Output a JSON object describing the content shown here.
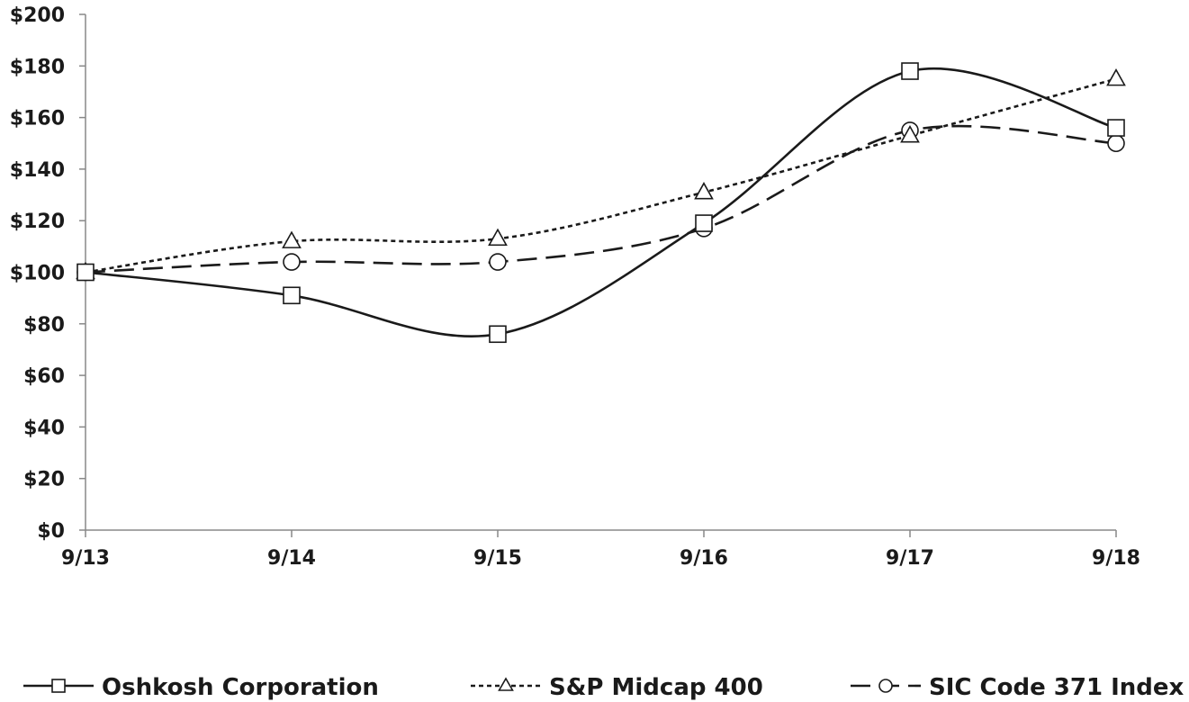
{
  "chart_data": {
    "type": "line",
    "title": "",
    "xlabel": "",
    "ylabel": "",
    "categories": [
      "9/13",
      "9/14",
      "9/15",
      "9/16",
      "9/17",
      "9/18"
    ],
    "ylim": [
      0,
      200
    ],
    "y_step": 20,
    "y_tick_labels": [
      "$0",
      "$20",
      "$40",
      "$60",
      "$80",
      "$100",
      "$120",
      "$140",
      "$160",
      "$180",
      "$200"
    ],
    "grid": false,
    "legend_position": "bottom",
    "series": [
      {
        "name": "Oshkosh Corporation",
        "values": [
          100,
          91,
          76,
          119,
          178,
          156
        ],
        "marker": "square",
        "dash": "solid",
        "color": "#1a1a1a"
      },
      {
        "name": "S&P Midcap 400",
        "values": [
          100,
          112,
          113,
          131,
          153,
          175
        ],
        "marker": "triangle",
        "dash": "short-dash",
        "color": "#1a1a1a"
      },
      {
        "name": "SIC Code 371 Index",
        "values": [
          100,
          104,
          104,
          117,
          155,
          150
        ],
        "marker": "circle",
        "dash": "long-dash",
        "color": "#1a1a1a"
      }
    ]
  }
}
